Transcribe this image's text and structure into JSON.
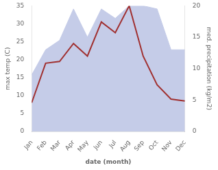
{
  "chart_data": {
    "type": "line",
    "categories": [
      "Jan",
      "Feb",
      "Mar",
      "Apr",
      "May",
      "Jun",
      "Jul",
      "Aug",
      "Sep",
      "Oct",
      "Nov",
      "Dec"
    ],
    "series": [
      {
        "type": "area",
        "axis": "y2",
        "color": "#c5cce8",
        "values": [
          9.0,
          13.0,
          14.5,
          19.5,
          15.0,
          19.5,
          18.0,
          20.0,
          20.0,
          19.5,
          13.0,
          13.0
        ]
      },
      {
        "type": "line",
        "axis": "y",
        "color": "#a03030",
        "values": [
          8.0,
          19.0,
          19.5,
          24.5,
          21.0,
          30.5,
          27.5,
          35.0,
          21.0,
          13.0,
          9.0,
          8.5
        ]
      }
    ],
    "xlabel": "date (month)",
    "ylabel": "max temp (C)",
    "y2label": "med. precipitation (kg/m2)",
    "ylim": [
      0,
      35
    ],
    "yticks": [
      0,
      5,
      10,
      15,
      20,
      25,
      30,
      35
    ],
    "y2lim": [
      0,
      20
    ],
    "y2ticks": [
      0,
      5,
      10,
      15,
      20
    ],
    "grid": false
  }
}
